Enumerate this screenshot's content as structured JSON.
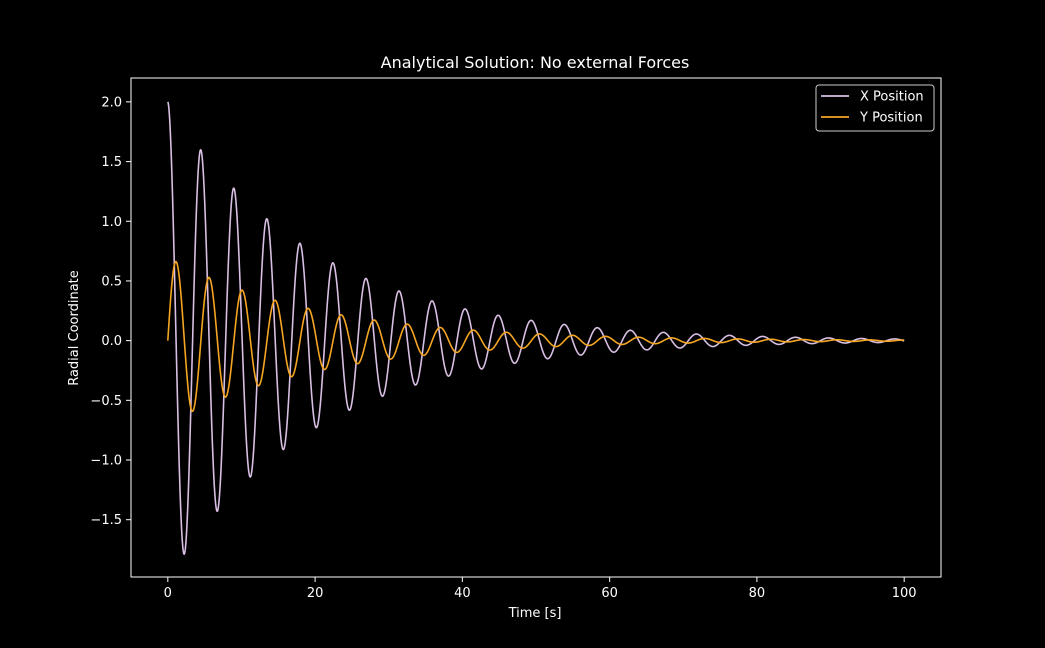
{
  "chart_data": {
    "type": "line",
    "title": "Analytical Solution: No external Forces",
    "xlabel": "Time [s]",
    "ylabel": "Radial Coordinate",
    "xlim": [
      -5,
      105
    ],
    "ylim": [
      -1.98,
      2.2
    ],
    "x_ticks": [
      0,
      20,
      40,
      60,
      80,
      100
    ],
    "y_ticks": [
      2.0,
      1.5,
      1.0,
      0.5,
      0.0,
      -0.5,
      -1.0,
      -1.5
    ],
    "x_tick_labels": [
      "0",
      "20",
      "40",
      "60",
      "80",
      "100"
    ],
    "y_tick_labels": [
      "2.0",
      "1.5",
      "1.0",
      "0.5",
      "0.0",
      "−0.5",
      "−1.0",
      "−1.5"
    ],
    "grid": false,
    "legend_position": "upper right",
    "background": "#000000",
    "series": [
      {
        "name": "X Position",
        "color": "#d8bfe3",
        "x_range": [
          0,
          100
        ],
        "model": "2.0 * exp(-0.05 t) * cos(1.4 t)"
      },
      {
        "name": "Y Position",
        "color": "#f5a623",
        "x_range": [
          0,
          100
        ],
        "model": "0.7 * exp(-0.05 t) * sin(1.4 t)"
      }
    ]
  }
}
